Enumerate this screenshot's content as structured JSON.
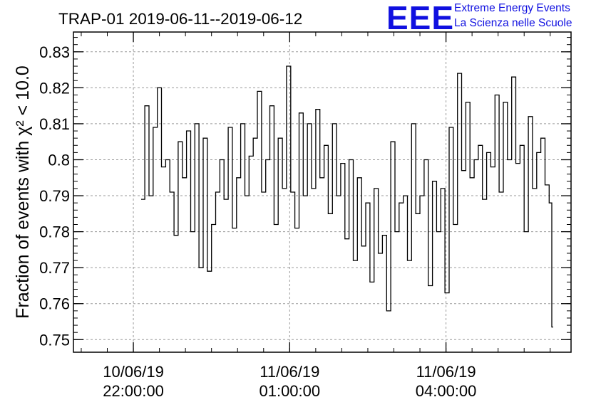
{
  "logo": {
    "mark": "EEE",
    "line1": "Extreme Energy Events",
    "line2": "La Scienza nelle Scuole",
    "color": "#1010e0"
  },
  "chart_data": {
    "type": "line",
    "title": "TRAP-01 2019-06-11--2019-06-12",
    "ylabel": "Fraction of events with χ² < 10.0",
    "xlabel": "",
    "ylim": [
      0.7465,
      0.8355
    ],
    "yticks": [
      0.75,
      0.76,
      0.77,
      0.78,
      0.79,
      0.8,
      0.81,
      0.82,
      0.83
    ],
    "ytick_labels": [
      "0.75",
      "0.76",
      "0.77",
      "0.78",
      "0.79",
      "0.8",
      "0.81",
      "0.82",
      "0.83"
    ],
    "x_range_hours": [
      20.85,
      30.4
    ],
    "xticks": [
      {
        "hour": 22,
        "line1": "10/06/19",
        "line2": "22:00:00"
      },
      {
        "hour": 25,
        "line1": "11/06/19",
        "line2": "01:00:00"
      },
      {
        "hour": 28,
        "line1": "11/06/19",
        "line2": "04:00:00"
      }
    ],
    "grid": true,
    "line_color": "#000000",
    "series": [
      {
        "x_hours": [
          22.15,
          22.22,
          22.3,
          22.38,
          22.46,
          22.54,
          22.62,
          22.7,
          22.78,
          22.86,
          22.94,
          23.02,
          23.1,
          23.18,
          23.26,
          23.34,
          23.42,
          23.5,
          23.58,
          23.66,
          23.74,
          23.82,
          23.9,
          23.98,
          24.06,
          24.14,
          24.22,
          24.3,
          24.38,
          24.46,
          24.54,
          24.62,
          24.7,
          24.78,
          24.86,
          24.94,
          25.02,
          25.1,
          25.18,
          25.26,
          25.34,
          25.42,
          25.5,
          25.58,
          25.66,
          25.74,
          25.82,
          25.9,
          25.98,
          26.06,
          26.14,
          26.22,
          26.3,
          26.38,
          26.46,
          26.54,
          26.62,
          26.7,
          26.78,
          26.86,
          26.94,
          27.02,
          27.1,
          27.18,
          27.26,
          27.34,
          27.42,
          27.5,
          27.58,
          27.66,
          27.74,
          27.82,
          27.9,
          27.98,
          28.06,
          28.14,
          28.22,
          28.3,
          28.38,
          28.46,
          28.54,
          28.62,
          28.7,
          28.78,
          28.86,
          28.94,
          29.02,
          29.1,
          29.18,
          29.26,
          29.34,
          29.42,
          29.5,
          29.58,
          29.66,
          29.74,
          29.82,
          29.9,
          29.98,
          30.03
        ],
        "y": [
          0.789,
          0.815,
          0.79,
          0.809,
          0.82,
          0.798,
          0.8,
          0.791,
          0.779,
          0.805,
          0.795,
          0.808,
          0.78,
          0.81,
          0.77,
          0.806,
          0.769,
          0.782,
          0.791,
          0.8,
          0.789,
          0.809,
          0.781,
          0.795,
          0.81,
          0.79,
          0.801,
          0.806,
          0.819,
          0.791,
          0.8,
          0.815,
          0.782,
          0.806,
          0.792,
          0.826,
          0.791,
          0.781,
          0.813,
          0.79,
          0.81,
          0.792,
          0.814,
          0.795,
          0.804,
          0.785,
          0.81,
          0.79,
          0.799,
          0.778,
          0.8,
          0.772,
          0.795,
          0.776,
          0.788,
          0.766,
          0.792,
          0.774,
          0.779,
          0.758,
          0.805,
          0.78,
          0.788,
          0.79,
          0.772,
          0.81,
          0.785,
          0.79,
          0.8,
          0.765,
          0.794,
          0.78,
          0.792,
          0.763,
          0.809,
          0.782,
          0.824,
          0.797,
          0.816,
          0.795,
          0.8,
          0.804,
          0.789,
          0.802,
          0.798,
          0.818,
          0.791,
          0.816,
          0.8,
          0.823,
          0.799,
          0.804,
          0.78,
          0.812,
          0.792,
          0.802,
          0.806,
          0.793,
          0.788,
          0.7535
        ]
      }
    ]
  }
}
